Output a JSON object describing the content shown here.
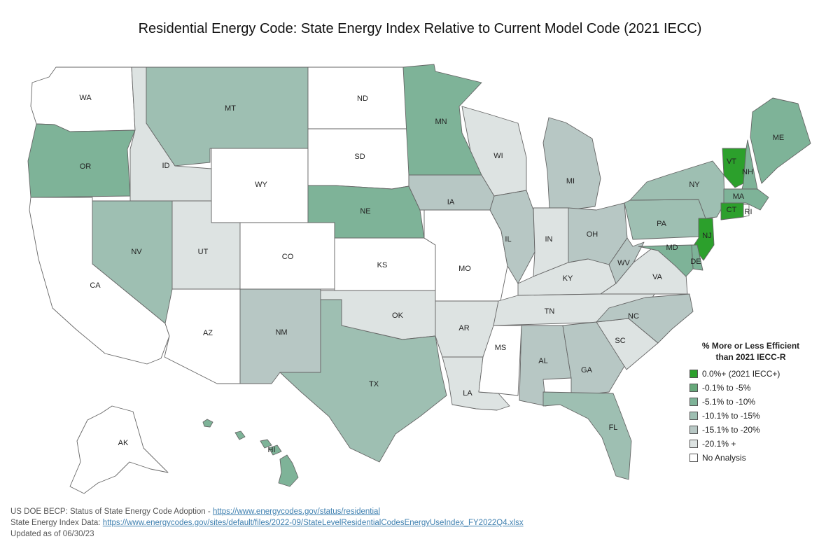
{
  "title": "Residential Energy Code: State Energy Index Relative to Current Model Code (2021 IECC)",
  "colors": {
    "cat0": "#2ca02c",
    "cat1": "#66a87a",
    "cat2": "#7eb398",
    "cat3": "#9ebfb2",
    "cat4": "#b7c7c4",
    "cat5": "#dde3e2",
    "none": "#ffffff"
  },
  "legend": {
    "title_line1": "% More or Less Efficient",
    "title_line2": "than 2021 IECC-R",
    "items": [
      {
        "label": "0.0%+ (2021 IECC+)",
        "color": "#2ca02c"
      },
      {
        "label": "-0.1% to -5%",
        "color": "#66a87a"
      },
      {
        "label": "-5.1% to -10%",
        "color": "#7eb398"
      },
      {
        "label": "-10.1% to -15%",
        "color": "#9ebfb2"
      },
      {
        "label": "-15.1% to -20%",
        "color": "#b7c7c4"
      },
      {
        "label": "-20.1% +",
        "color": "#dde3e2"
      },
      {
        "label": "No Analysis",
        "color": "#ffffff"
      }
    ]
  },
  "states": {
    "WA": "none",
    "OR": "cat2",
    "CA": "none",
    "ID": "cat5",
    "NV": "cat3",
    "MT": "cat3",
    "WY": "none",
    "UT": "cat5",
    "AZ": "none",
    "CO": "none",
    "NM": "cat4",
    "ND": "none",
    "SD": "none",
    "NE": "cat2",
    "KS": "none",
    "OK": "cat5",
    "TX": "cat3",
    "MN": "cat2",
    "IA": "cat4",
    "MO": "none",
    "AR": "cat5",
    "LA": "cat5",
    "WI": "cat5",
    "IL": "cat4",
    "MI": "cat4",
    "IN": "cat5",
    "OH": "cat4",
    "KY": "cat5",
    "TN": "cat5",
    "MS": "none",
    "AL": "cat4",
    "GA": "cat4",
    "FL": "cat3",
    "SC": "cat5",
    "NC": "cat4",
    "VA": "cat5",
    "WV": "cat4",
    "PA": "cat3",
    "NY": "cat3",
    "VT": "cat0",
    "NH": "cat2",
    "ME": "cat2",
    "MA": "cat2",
    "CT": "cat0",
    "RI": "none",
    "NJ": "cat0",
    "DE": "cat2",
    "MD": "cat2",
    "AK": "none",
    "HI": "cat2"
  },
  "footer": {
    "line1_text": "US DOE BECP: Status of State Energy Code Adoption - ",
    "line1_link": "https://www.energycodes.gov/status/residential",
    "line2_text": "State Energy Index Data: ",
    "line2_link": "https://www.energycodes.gov/sites/default/files/2022-09/StateLevelResidentialCodesEnergyUseIndex_FY2022Q4.xlsx",
    "line3_text": "Updated as of 06/30/23"
  }
}
